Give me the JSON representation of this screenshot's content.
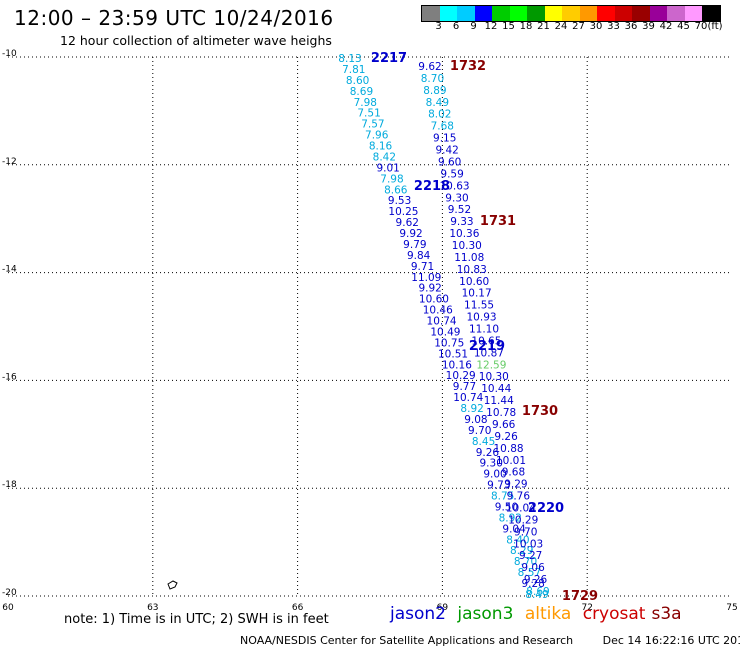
{
  "header": {
    "title": "12:00 – 23:59 UTC 10/24/2016",
    "subtitle": "12 hour collection of altimeter wave heighs"
  },
  "legend": {
    "unit": "(ft)",
    "colors": [
      "#7f7f7f",
      "#00ffff",
      "#00ccff",
      "#0000ff",
      "#00cc00",
      "#00ff00",
      "#009900",
      "#ffff00",
      "#ffcc00",
      "#ff9900",
      "#ff0000",
      "#cc0000",
      "#990000",
      "#990099",
      "#cc66cc",
      "#ff99ff",
      "#000000"
    ],
    "labels": [
      "3",
      "6",
      "9",
      "12",
      "15",
      "18",
      "21",
      "24",
      "27",
      "30",
      "33",
      "36",
      "39",
      "42",
      "45",
      "70"
    ]
  },
  "axes": {
    "x_ticks": [
      "60",
      "63",
      "66",
      "69",
      "72",
      "75"
    ],
    "y_ticks": [
      "-10",
      "-12",
      "-14",
      "-16",
      "-18",
      "-20"
    ]
  },
  "passes": [
    {
      "label": "2217",
      "color": "#0000cc"
    },
    {
      "label": "1732",
      "color": "#880000"
    },
    {
      "label": "2218",
      "color": "#0000cc"
    },
    {
      "label": "1731",
      "color": "#880000"
    },
    {
      "label": "2219",
      "color": "#0000cc"
    },
    {
      "label": "1730",
      "color": "#880000"
    },
    {
      "label": "2220",
      "color": "#0000cc"
    },
    {
      "label": "1729",
      "color": "#880000"
    }
  ],
  "tracks": {
    "jason2_a": [
      "8.13",
      "7.81",
      "8.60",
      "8.69",
      "7.98",
      "7.51",
      "7.57",
      "7.96",
      "8.16",
      "8.42",
      "9.01",
      "7.98",
      "8.66",
      "9.53",
      "10.25",
      "9.62",
      "9.92",
      "9.79",
      "9.84",
      "9.71",
      "11.09",
      "9.92",
      "10.60",
      "10.46",
      "10.74",
      "10.49",
      "10.75",
      "10.51",
      "10.16",
      "10.29",
      "9.77",
      "10.74",
      "8.92",
      "9.08",
      "9.70",
      "8.45",
      "9.26",
      "9.30",
      "9.00",
      "9.73",
      "8.75",
      "9.50",
      "8.92",
      "9.04",
      "8.40",
      "8.29",
      "8.70",
      "8.57",
      "9.28",
      "8.49"
    ],
    "cryosat_a": [
      "9.62",
      "8.70",
      "8.89",
      "8.49",
      "8.02",
      "7.68",
      "9.15",
      "9.42",
      "9.60",
      "9.59",
      "10.63",
      "9.30",
      "9.52",
      "9.33",
      "10.36",
      "10.30",
      "11.08",
      "10.83",
      "10.60",
      "10.17",
      "11.55",
      "10.93",
      "11.10",
      "10.65",
      "10.87",
      "12.59",
      "10.30",
      "10.44",
      "11.44",
      "10.78",
      "9.66",
      "9.26",
      "10.88",
      "10.01",
      "9.68",
      "9.29",
      "9.76",
      "10.04",
      "10.29",
      "9.70",
      "10.03",
      "9.27",
      "9.06",
      "9.26",
      "8.69"
    ]
  },
  "sats_note": {
    "note": "note:  1) Time is in UTC;  2) SWH is in feet",
    "jason2": "jason2",
    "jason3": "jason3",
    "altika": "altika",
    "cryosat": "cryosat",
    "s3a": "s3a"
  },
  "colors": {
    "jason2": "#0000cc",
    "jason3": "#009900",
    "altika": "#ff9900",
    "cryosat": "#cc0000",
    "s3a": "#880000"
  },
  "footer": {
    "credit": "NOAA/NESDIS Center for Satellite Applications and Research",
    "stamp": "Dec 14 16:22:16 UTC 2016"
  },
  "map_data": {
    "lon_range": [
      60,
      75
    ],
    "lat_range": [
      -20,
      -10
    ]
  }
}
